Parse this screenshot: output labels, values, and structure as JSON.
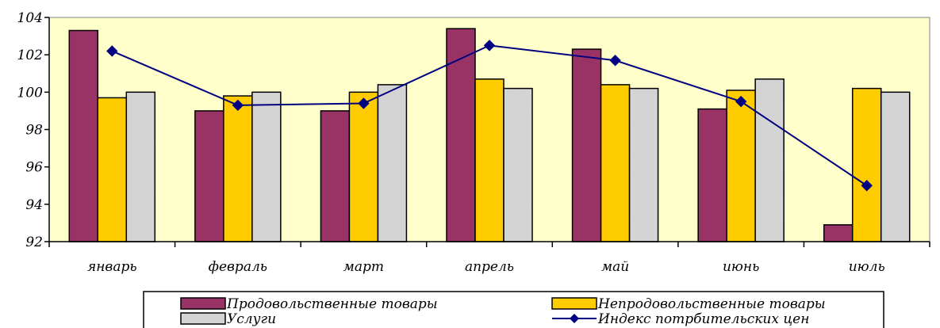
{
  "chart_data": {
    "type": "bar",
    "categories": [
      "январь",
      "февраль",
      "март",
      "апрель",
      "май",
      "июнь",
      "июль"
    ],
    "series": [
      {
        "name": "Продовольственные товары",
        "kind": "bar",
        "color": "#993366",
        "values": [
          103.3,
          99.0,
          99.0,
          103.4,
          102.3,
          99.1,
          92.9
        ]
      },
      {
        "name": "Непродовольственные товары",
        "kind": "bar",
        "color": "#FFCC00",
        "values": [
          99.7,
          99.8,
          100.0,
          100.7,
          100.4,
          100.1,
          100.2
        ]
      },
      {
        "name": "Услуги",
        "kind": "bar",
        "color": "#B0B0B0",
        "pattern": "granite",
        "values": [
          100.0,
          100.0,
          100.4,
          100.2,
          100.2,
          100.7,
          100.0
        ]
      },
      {
        "name": "Индекс потрбительских цен",
        "kind": "line",
        "color": "#000080",
        "marker": "diamond",
        "values": [
          102.2,
          99.3,
          99.4,
          102.5,
          101.7,
          99.5,
          95.0
        ]
      }
    ],
    "ylim": [
      92,
      104
    ],
    "yticks": [
      "92",
      "94",
      "96",
      "98",
      "100",
      "102",
      "104"
    ],
    "plot_background": "#FFFFCC",
    "grid": false,
    "legend_position": "bottom"
  }
}
